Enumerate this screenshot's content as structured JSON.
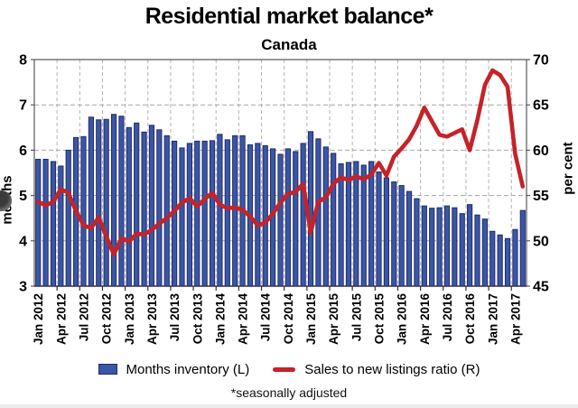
{
  "chart_data": {
    "type": "bar",
    "combo": "bar + line, dual axis",
    "title": "Residential market balance*",
    "subtitle": "Canada",
    "footnote": "*seasonally adjusted",
    "legend_position": "bottom",
    "grid": "dashed horizontal and quarterly vertical gridlines on",
    "left_axis": {
      "title": "months",
      "min": 3,
      "max": 8,
      "step": 1,
      "tick_labels": [
        "3",
        "4",
        "5",
        "6",
        "7",
        "8"
      ]
    },
    "right_axis": {
      "title": "per cent",
      "min": 45,
      "max": 70,
      "step": 5,
      "tick_labels": [
        "45",
        "50",
        "55",
        "60",
        "65",
        "70"
      ]
    },
    "x_tick_labels": [
      "Jan 2012",
      "Apr 2012",
      "Jul 2012",
      "Oct 2012",
      "Jan 2013",
      "Apr 2013",
      "Jul 2013",
      "Oct 2013",
      "Jan 2014",
      "Apr 2014",
      "Jul 2014",
      "Oct 2014",
      "Jan 2015",
      "Apr 2015",
      "Jul 2015",
      "Oct 2015",
      "Jan 2016",
      "Apr 2016",
      "Jul 2016",
      "Oct 2016",
      "Jan 2017",
      "Apr 2017"
    ],
    "categories": [
      "Jan 2012",
      "Feb 2012",
      "Mar 2012",
      "Apr 2012",
      "May 2012",
      "Jun 2012",
      "Jul 2012",
      "Aug 2012",
      "Sep 2012",
      "Oct 2012",
      "Nov 2012",
      "Dec 2012",
      "Jan 2013",
      "Feb 2013",
      "Mar 2013",
      "Apr 2013",
      "May 2013",
      "Jun 2013",
      "Jul 2013",
      "Aug 2013",
      "Sep 2013",
      "Oct 2013",
      "Nov 2013",
      "Dec 2013",
      "Jan 2014",
      "Feb 2014",
      "Mar 2014",
      "Apr 2014",
      "May 2014",
      "Jun 2014",
      "Jul 2014",
      "Aug 2014",
      "Sep 2014",
      "Oct 2014",
      "Nov 2014",
      "Dec 2014",
      "Jan 2015",
      "Feb 2015",
      "Mar 2015",
      "Apr 2015",
      "May 2015",
      "Jun 2015",
      "Jul 2015",
      "Aug 2015",
      "Sep 2015",
      "Oct 2015",
      "Nov 2015",
      "Dec 2015",
      "Jan 2016",
      "Feb 2016",
      "Mar 2016",
      "Apr 2016",
      "May 2016",
      "Jun 2016",
      "Jul 2016",
      "Aug 2016",
      "Sep 2016",
      "Oct 2016",
      "Nov 2016",
      "Dec 2016",
      "Jan 2017",
      "Feb 2017",
      "Mar 2017",
      "Apr 2017",
      "May 2017"
    ],
    "series": [
      {
        "name": "Months inventory (L)",
        "type": "bar",
        "axis": "left",
        "color": "#3C55A5",
        "border_color": "#1E2D6B",
        "values": [
          5.8,
          5.8,
          5.75,
          5.65,
          6.0,
          6.28,
          6.3,
          6.73,
          6.67,
          6.68,
          6.79,
          6.75,
          6.5,
          6.6,
          6.4,
          6.55,
          6.45,
          6.32,
          6.2,
          6.05,
          6.15,
          6.2,
          6.2,
          6.21,
          6.35,
          6.23,
          6.32,
          6.32,
          6.12,
          6.15,
          6.1,
          6.03,
          5.91,
          6.03,
          5.97,
          6.15,
          6.41,
          6.25,
          6.07,
          5.93,
          5.7,
          5.73,
          5.75,
          5.67,
          5.75,
          5.52,
          5.39,
          5.3,
          5.22,
          5.09,
          4.93,
          4.77,
          4.72,
          4.73,
          4.77,
          4.73,
          4.6,
          4.8,
          4.57,
          4.48,
          4.21,
          4.13,
          4.05,
          4.25,
          4.67
        ]
      },
      {
        "name": "Sales to new listings ratio (R)",
        "type": "line",
        "axis": "right",
        "color": "#C4232A",
        "values": [
          54.3,
          53.9,
          54.3,
          55.7,
          55.3,
          53.3,
          51.7,
          51.4,
          52.6,
          50.5,
          48.5,
          50.3,
          49.9,
          50.8,
          50.7,
          51.2,
          51.9,
          52.5,
          53.3,
          54.2,
          54.7,
          53.8,
          54.6,
          55.3,
          54.0,
          53.6,
          53.7,
          53.4,
          52.7,
          51.7,
          52.0,
          53.0,
          54.2,
          55.2,
          55.4,
          56.3,
          50.9,
          54.3,
          54.8,
          56.3,
          57.0,
          56.7,
          57.1,
          56.8,
          57.3,
          58.6,
          57.2,
          59.3,
          60.2,
          61.2,
          62.7,
          64.7,
          63.2,
          61.7,
          61.5,
          61.9,
          62.3,
          60.0,
          63.3,
          67.2,
          68.8,
          68.3,
          67.0,
          59.6,
          56.0
        ]
      }
    ]
  }
}
